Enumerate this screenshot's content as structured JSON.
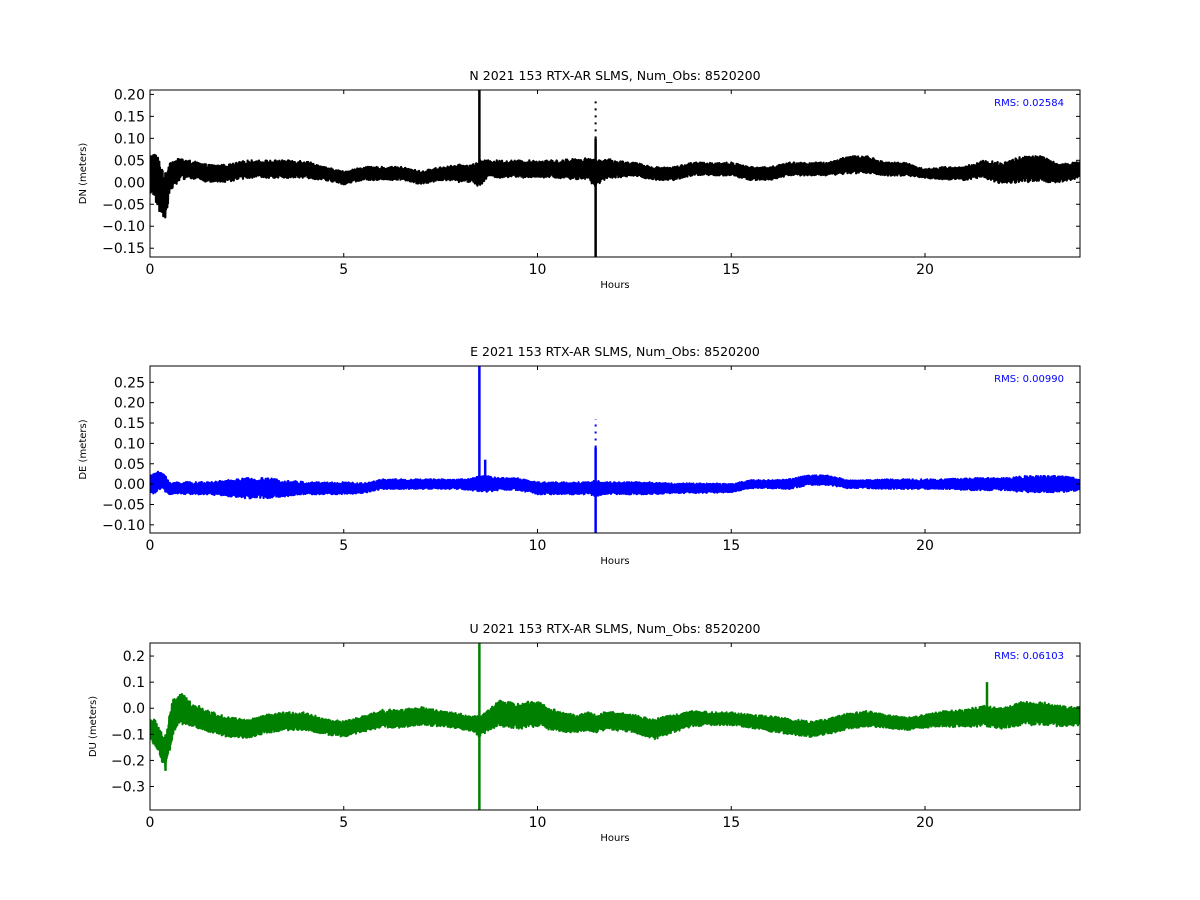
{
  "chart_data": [
    {
      "type": "line",
      "title": "N 2021 153 RTX-AR  SLMS, Num_Obs: 8520200",
      "xlabel": "Hours",
      "ylabel": "DN (meters)",
      "xlim": [
        0,
        24
      ],
      "ylim": [
        -0.17,
        0.21
      ],
      "xticks": [
        0,
        5,
        10,
        15,
        20
      ],
      "yticks": [
        -0.15,
        -0.1,
        -0.05,
        0.0,
        0.05,
        0.1,
        0.15,
        0.2
      ],
      "ytick_labels": [
        "−0.15",
        "−0.10",
        "−0.05",
        "0.00",
        "0.05",
        "0.10",
        "0.15",
        "0.20"
      ],
      "annotation": "RMS:  0.02584",
      "grid": false,
      "color": "#000000",
      "annotation_color": "#0000ff",
      "series": [
        {
          "x": [
            0,
            0.1,
            0.2,
            0.3,
            0.4,
            0.5,
            0.6,
            0.8,
            1.0,
            1.5,
            2.0,
            2.5,
            3.0,
            3.5,
            4.0,
            4.5,
            5.0,
            5.5,
            6.0,
            6.5,
            7.0,
            7.5,
            8.0,
            8.3,
            8.5,
            8.7,
            9.0,
            9.5,
            10.0,
            10.5,
            11.0,
            11.3,
            11.5,
            11.7,
            12.0,
            12.5,
            13.0,
            13.5,
            14.0,
            14.5,
            15.0,
            15.5,
            16.0,
            16.5,
            17.0,
            17.5,
            18.0,
            18.5,
            19.0,
            19.5,
            20.0,
            20.5,
            21.0,
            21.5,
            22.0,
            22.5,
            23.0,
            23.5,
            24.0
          ],
          "center": [
            0.01,
            0.02,
            0.0,
            -0.02,
            -0.03,
            0.01,
            0.02,
            0.03,
            0.03,
            0.02,
            0.02,
            0.03,
            0.03,
            0.03,
            0.03,
            0.02,
            0.01,
            0.02,
            0.02,
            0.02,
            0.01,
            0.02,
            0.02,
            0.02,
            0.02,
            0.03,
            0.03,
            0.03,
            0.03,
            0.03,
            0.03,
            0.03,
            0.02,
            0.03,
            0.03,
            0.03,
            0.02,
            0.02,
            0.03,
            0.03,
            0.03,
            0.02,
            0.02,
            0.03,
            0.03,
            0.03,
            0.04,
            0.04,
            0.03,
            0.03,
            0.02,
            0.02,
            0.02,
            0.03,
            0.02,
            0.03,
            0.03,
            0.02,
            0.03
          ],
          "halfwidth": [
            0.05,
            0.05,
            0.06,
            0.06,
            0.05,
            0.04,
            0.03,
            0.025,
            0.02,
            0.02,
            0.02,
            0.02,
            0.02,
            0.02,
            0.02,
            0.015,
            0.015,
            0.015,
            0.015,
            0.015,
            0.015,
            0.015,
            0.02,
            0.02,
            0.03,
            0.02,
            0.02,
            0.02,
            0.02,
            0.02,
            0.025,
            0.025,
            0.03,
            0.025,
            0.02,
            0.015,
            0.015,
            0.015,
            0.015,
            0.015,
            0.015,
            0.015,
            0.015,
            0.015,
            0.015,
            0.015,
            0.02,
            0.02,
            0.015,
            0.015,
            0.01,
            0.015,
            0.015,
            0.02,
            0.025,
            0.03,
            0.03,
            0.02,
            0.02
          ],
          "spikes": [
            {
              "x": 8.5,
              "y_min": 0.02,
              "y_max": 0.21
            },
            {
              "x": 11.5,
              "y_min": -0.17,
              "y_max": 0.1
            },
            {
              "x": 11.5,
              "y_min": 0.1,
              "y_max": 0.19,
              "dotted": true
            }
          ]
        }
      ]
    },
    {
      "type": "line",
      "title": "E 2021 153 RTX-AR  SLMS, Num_Obs: 8520200",
      "xlabel": "Hours",
      "ylabel": "DE (meters)",
      "xlim": [
        0,
        24
      ],
      "ylim": [
        -0.12,
        0.29
      ],
      "xticks": [
        0,
        5,
        10,
        15,
        20
      ],
      "yticks": [
        -0.1,
        -0.05,
        0.0,
        0.05,
        0.1,
        0.15,
        0.2,
        0.25
      ],
      "ytick_labels": [
        "−0.10",
        "−0.05",
        "0.00",
        "0.05",
        "0.10",
        "0.15",
        "0.20",
        "0.25"
      ],
      "annotation": "RMS:  0.00990",
      "grid": false,
      "color": "#0000ff",
      "annotation_color": "#0000ff",
      "series": [
        {
          "x": [
            0,
            0.1,
            0.2,
            0.3,
            0.4,
            0.5,
            0.6,
            0.8,
            1.0,
            1.5,
            2.0,
            2.5,
            3.0,
            3.5,
            4.0,
            4.5,
            5.0,
            5.5,
            6.0,
            6.5,
            7.0,
            7.5,
            8.0,
            8.3,
            8.5,
            8.7,
            9.0,
            9.5,
            10.0,
            10.5,
            11.0,
            11.3,
            11.5,
            11.7,
            12.0,
            12.5,
            13.0,
            13.5,
            14.0,
            14.5,
            15.0,
            15.5,
            16.0,
            16.5,
            17.0,
            17.5,
            18.0,
            18.5,
            19.0,
            19.5,
            20.0,
            20.5,
            21.0,
            21.5,
            22.0,
            22.5,
            23.0,
            23.5,
            24.0
          ],
          "center": [
            0.0,
            0.0,
            0.01,
            0.01,
            0.0,
            -0.01,
            -0.01,
            -0.01,
            -0.01,
            -0.01,
            -0.01,
            -0.01,
            -0.01,
            -0.01,
            -0.01,
            -0.01,
            -0.01,
            -0.01,
            0.0,
            0.0,
            0.0,
            0.0,
            0.0,
            0.0,
            0.0,
            0.0,
            0.0,
            0.0,
            -0.01,
            -0.01,
            -0.01,
            -0.01,
            -0.01,
            -0.01,
            -0.01,
            -0.01,
            -0.01,
            -0.01,
            -0.01,
            -0.01,
            -0.01,
            0.0,
            0.0,
            0.0,
            0.01,
            0.01,
            0.0,
            0.0,
            0.0,
            0.0,
            0.0,
            0.0,
            0.0,
            0.0,
            0.0,
            0.0,
            0.0,
            0.0,
            0.0
          ],
          "halfwidth": [
            0.02,
            0.025,
            0.025,
            0.02,
            0.02,
            0.015,
            0.015,
            0.015,
            0.015,
            0.015,
            0.02,
            0.025,
            0.025,
            0.02,
            0.015,
            0.015,
            0.015,
            0.012,
            0.012,
            0.012,
            0.012,
            0.012,
            0.012,
            0.015,
            0.02,
            0.02,
            0.015,
            0.015,
            0.015,
            0.015,
            0.015,
            0.015,
            0.02,
            0.015,
            0.015,
            0.015,
            0.015,
            0.012,
            0.012,
            0.012,
            0.01,
            0.01,
            0.01,
            0.012,
            0.012,
            0.012,
            0.01,
            0.01,
            0.012,
            0.012,
            0.012,
            0.012,
            0.015,
            0.015,
            0.015,
            0.02,
            0.02,
            0.02,
            0.015
          ],
          "spikes": [
            {
              "x": 8.5,
              "y_min": 0.0,
              "y_max": 0.29
            },
            {
              "x": 8.65,
              "y_min": 0.0,
              "y_max": 0.06
            },
            {
              "x": 11.5,
              "y_min": -0.12,
              "y_max": 0.09
            },
            {
              "x": 11.5,
              "y_min": 0.09,
              "y_max": 0.16,
              "dotted": true
            }
          ]
        }
      ]
    },
    {
      "type": "line",
      "title": "U 2021 153 RTX-AR  SLMS, Num_Obs: 8520200",
      "xlabel": "Hours",
      "ylabel": "DU (meters)",
      "xlim": [
        0,
        24
      ],
      "ylim": [
        -0.39,
        0.25
      ],
      "xticks": [
        0,
        5,
        10,
        15,
        20
      ],
      "yticks": [
        -0.3,
        -0.2,
        -0.1,
        0.0,
        0.1,
        0.2
      ],
      "ytick_labels": [
        "−0.3",
        "−0.2",
        "−0.1",
        "0.0",
        "0.1",
        "0.2"
      ],
      "annotation": "RMS:  0.06103",
      "grid": false,
      "color": "#008000",
      "annotation_color": "#0000ff",
      "series": [
        {
          "x": [
            0,
            0.1,
            0.2,
            0.3,
            0.4,
            0.5,
            0.6,
            0.8,
            1.0,
            1.5,
            2.0,
            2.5,
            3.0,
            3.5,
            4.0,
            4.5,
            5.0,
            5.5,
            6.0,
            6.5,
            7.0,
            7.5,
            8.0,
            8.3,
            8.5,
            8.7,
            9.0,
            9.5,
            10.0,
            10.5,
            11.0,
            11.3,
            11.5,
            11.7,
            12.0,
            12.5,
            13.0,
            13.5,
            14.0,
            14.5,
            15.0,
            15.5,
            16.0,
            16.5,
            17.0,
            17.5,
            18.0,
            18.5,
            19.0,
            19.5,
            20.0,
            20.5,
            21.0,
            21.5,
            22.0,
            22.5,
            23.0,
            23.5,
            24.0
          ],
          "center": [
            -0.08,
            -0.09,
            -0.11,
            -0.15,
            -0.17,
            -0.1,
            -0.03,
            0.0,
            -0.02,
            -0.05,
            -0.07,
            -0.08,
            -0.06,
            -0.05,
            -0.05,
            -0.07,
            -0.08,
            -0.06,
            -0.04,
            -0.04,
            -0.03,
            -0.04,
            -0.05,
            -0.06,
            -0.07,
            -0.05,
            -0.02,
            -0.03,
            -0.02,
            -0.05,
            -0.06,
            -0.05,
            -0.06,
            -0.05,
            -0.05,
            -0.06,
            -0.08,
            -0.06,
            -0.04,
            -0.04,
            -0.04,
            -0.05,
            -0.06,
            -0.07,
            -0.08,
            -0.07,
            -0.05,
            -0.04,
            -0.05,
            -0.06,
            -0.05,
            -0.04,
            -0.04,
            -0.03,
            -0.04,
            -0.02,
            -0.02,
            -0.03,
            -0.03
          ],
          "halfwidth": [
            0.04,
            0.05,
            0.05,
            0.06,
            0.06,
            0.07,
            0.07,
            0.06,
            0.05,
            0.04,
            0.04,
            0.035,
            0.035,
            0.035,
            0.035,
            0.03,
            0.03,
            0.03,
            0.035,
            0.035,
            0.035,
            0.03,
            0.03,
            0.03,
            0.04,
            0.04,
            0.05,
            0.05,
            0.05,
            0.04,
            0.035,
            0.035,
            0.035,
            0.035,
            0.035,
            0.035,
            0.04,
            0.035,
            0.03,
            0.025,
            0.025,
            0.025,
            0.03,
            0.03,
            0.03,
            0.03,
            0.03,
            0.03,
            0.025,
            0.025,
            0.025,
            0.03,
            0.035,
            0.04,
            0.04,
            0.045,
            0.045,
            0.04,
            0.035
          ],
          "spikes": [
            {
              "x": 8.5,
              "y_min": -0.39,
              "y_max": 0.25
            },
            {
              "x": 21.6,
              "y_min": -0.05,
              "y_max": 0.1
            },
            {
              "x": 0.4,
              "y_min": -0.24,
              "y_max": -0.1
            }
          ]
        }
      ]
    }
  ]
}
